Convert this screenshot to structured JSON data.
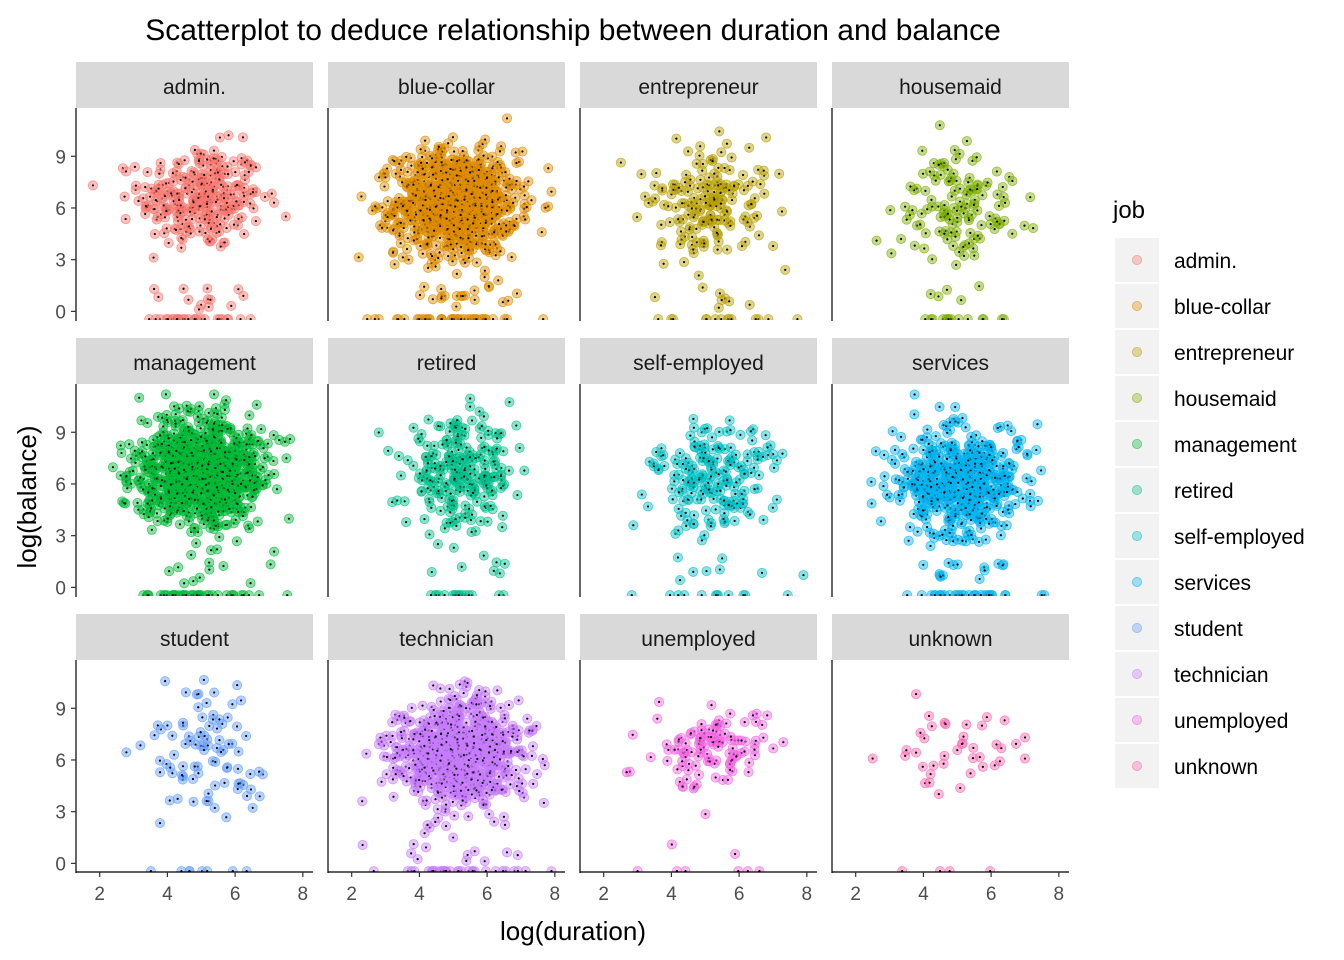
{
  "chart_data": {
    "type": "scatter",
    "title": "Scatterplot to deduce relationship between duration and balance",
    "xlabel": "log(duration)",
    "ylabel": "log(balance)",
    "xlim": [
      1.3,
      8.3
    ],
    "ylim": [
      -0.5,
      11.8
    ],
    "x_ticks": [
      2,
      4,
      6,
      8
    ],
    "y_ticks": [
      0,
      3,
      6,
      9
    ],
    "grid": false,
    "legend_title": "job",
    "legend_position": "right",
    "facets": [
      {
        "job": "admin.",
        "color": "#F8766D",
        "n": 300,
        "cx": 5.0,
        "sx": 0.9,
        "cy": 6.6,
        "sy": 1.5,
        "n_zero": 26,
        "n_low": 12,
        "x_range": [
          1.8,
          7.7
        ]
      },
      {
        "job": "blue-collar",
        "color": "#DE8C00",
        "n": 950,
        "cx": 5.1,
        "sx": 0.9,
        "cy": 6.3,
        "sy": 1.5,
        "n_zero": 40,
        "n_low": 18,
        "x_range": [
          1.6,
          7.9
        ]
      },
      {
        "job": "entrepreneur",
        "color": "#B79F00",
        "n": 180,
        "cx": 5.1,
        "sx": 0.9,
        "cy": 6.2,
        "sy": 1.7,
        "n_zero": 14,
        "n_low": 8,
        "x_range": [
          2.2,
          8.0
        ]
      },
      {
        "job": "housemaid",
        "color": "#7CAE00",
        "n": 130,
        "cx": 5.0,
        "sx": 0.9,
        "cy": 6.2,
        "sy": 1.6,
        "n_zero": 14,
        "n_low": 4,
        "x_range": [
          2.6,
          7.6
        ]
      },
      {
        "job": "management",
        "color": "#00BA38",
        "n": 1100,
        "cx": 5.0,
        "sx": 0.9,
        "cy": 6.7,
        "sy": 1.5,
        "n_zero": 38,
        "n_low": 10,
        "x_range": [
          1.5,
          7.9
        ]
      },
      {
        "job": "retired",
        "color": "#00C08B",
        "n": 260,
        "cx": 5.2,
        "sx": 0.8,
        "cy": 6.5,
        "sy": 1.5,
        "n_zero": 16,
        "n_low": 5,
        "x_range": [
          2.8,
          7.5
        ]
      },
      {
        "job": "self-employed",
        "color": "#00BFC4",
        "n": 200,
        "cx": 5.2,
        "sx": 0.9,
        "cy": 6.3,
        "sy": 1.5,
        "n_zero": 12,
        "n_low": 6,
        "x_range": [
          2.0,
          7.9
        ]
      },
      {
        "job": "services",
        "color": "#00B4F0",
        "n": 600,
        "cx": 5.1,
        "sx": 0.9,
        "cy": 6.1,
        "sy": 1.5,
        "n_zero": 30,
        "n_low": 12,
        "x_range": [
          1.8,
          7.9
        ]
      },
      {
        "job": "student",
        "color": "#619CFF",
        "n": 90,
        "cx": 5.2,
        "sx": 0.9,
        "cy": 6.5,
        "sy": 1.7,
        "n_zero": 8,
        "n_low": 0,
        "x_range": [
          1.7,
          7.2
        ]
      },
      {
        "job": "technician",
        "color": "#C77CFF",
        "n": 900,
        "cx": 5.2,
        "sx": 0.9,
        "cy": 6.4,
        "sy": 1.5,
        "n_zero": 32,
        "n_low": 12,
        "x_range": [
          1.6,
          7.9
        ]
      },
      {
        "job": "unemployed",
        "color": "#F564E3",
        "n": 120,
        "cx": 5.3,
        "sx": 0.9,
        "cy": 6.6,
        "sy": 1.4,
        "n_zero": 6,
        "n_low": 2,
        "x_range": [
          2.0,
          8.0
        ]
      },
      {
        "job": "unknown",
        "color": "#FF64B0",
        "n": 40,
        "cx": 4.9,
        "sx": 1.0,
        "cy": 6.8,
        "sy": 1.3,
        "n_zero": 4,
        "n_low": 0,
        "x_range": [
          2.5,
          7.0
        ]
      }
    ]
  }
}
